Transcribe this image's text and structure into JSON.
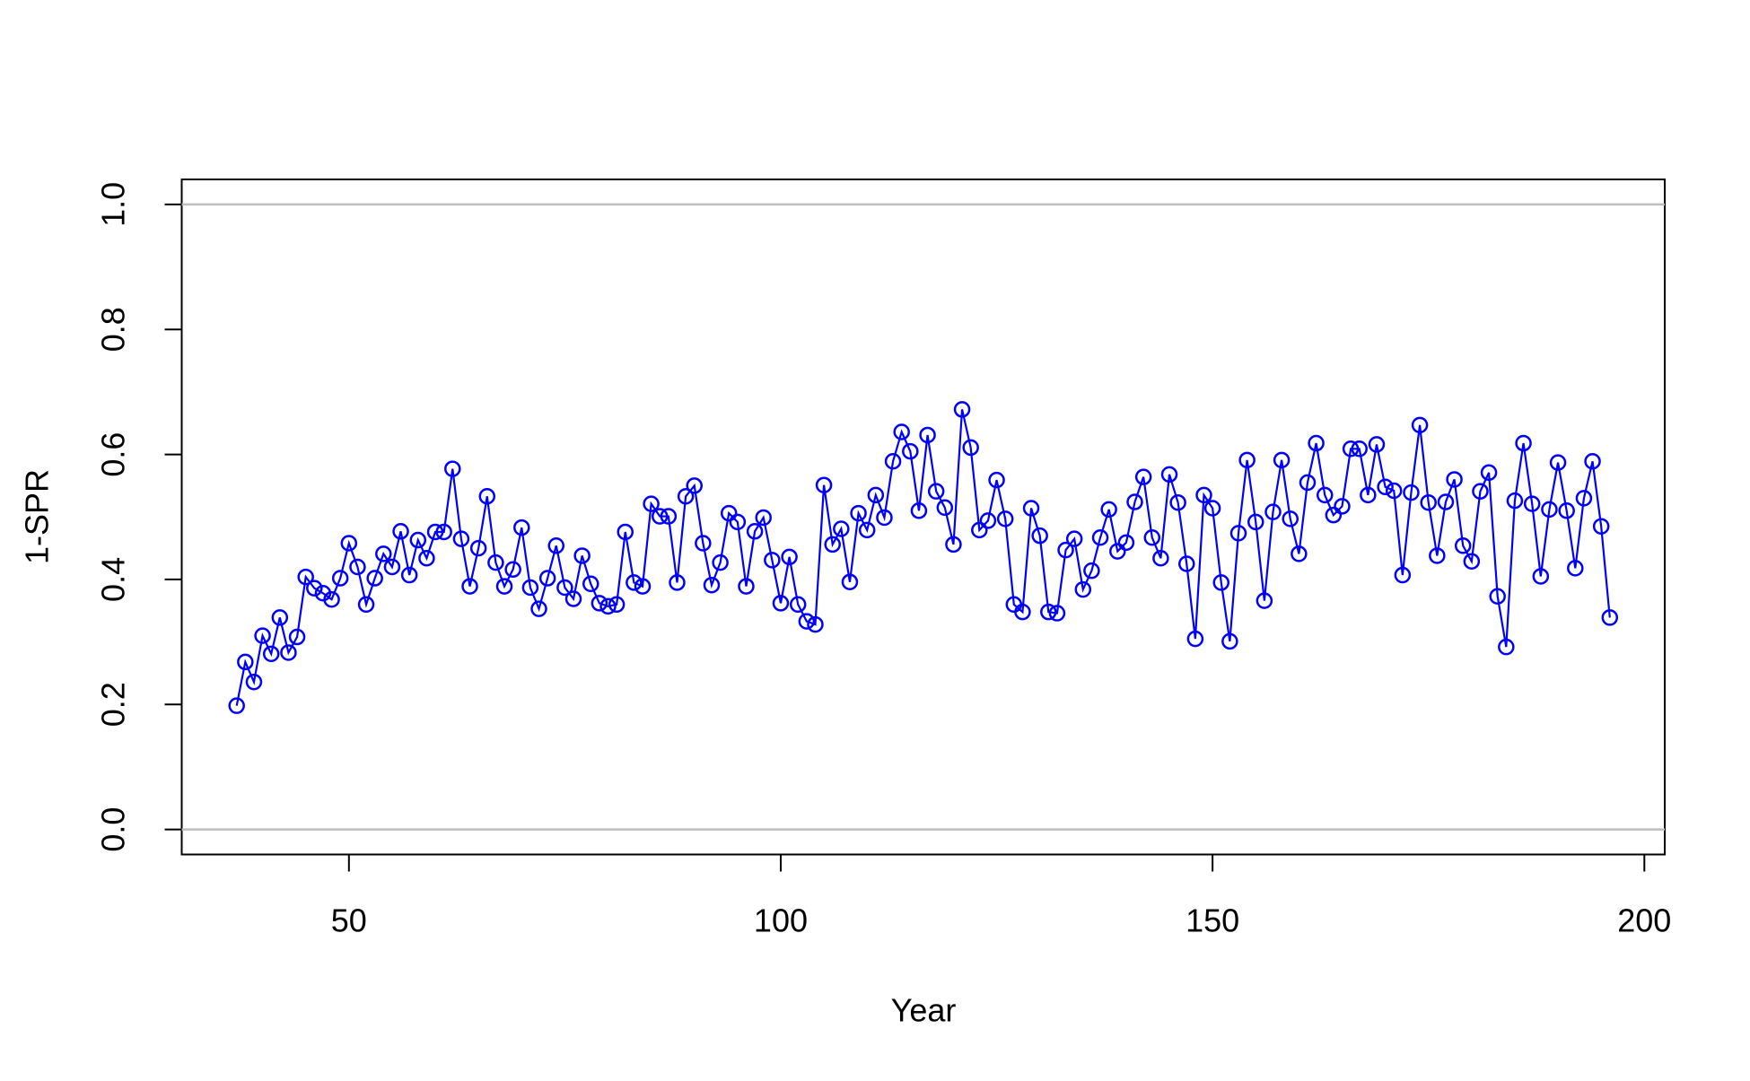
{
  "chart_data": {
    "type": "line",
    "x_label": "Year",
    "y_label": "1-SPR",
    "color": "#0000ff",
    "hline_color": "#bebebe",
    "hlines": [
      0,
      1
    ],
    "xlim": [
      30.64,
      202.36
    ],
    "ylim": [
      -0.04,
      1.04
    ],
    "xticks": [
      50,
      100,
      150,
      200
    ],
    "yticks": [
      {
        "value": 0,
        "label": "0.0"
      },
      0.2,
      0.4,
      0.6,
      0.8,
      {
        "value": 1,
        "label": "1.0"
      }
    ],
    "x": [
      37,
      38,
      39,
      40,
      41,
      42,
      43,
      44,
      45,
      46,
      47,
      48,
      49,
      50,
      51,
      52,
      53,
      54,
      55,
      56,
      57,
      58,
      59,
      60,
      61,
      62,
      63,
      64,
      65,
      66,
      67,
      68,
      69,
      70,
      71,
      72,
      73,
      74,
      75,
      76,
      77,
      78,
      79,
      80,
      81,
      82,
      83,
      84,
      85,
      86,
      87,
      88,
      89,
      90,
      91,
      92,
      93,
      94,
      95,
      96,
      97,
      98,
      99,
      100,
      101,
      102,
      103,
      104,
      105,
      106,
      107,
      108,
      109,
      110,
      111,
      112,
      113,
      114,
      115,
      116,
      117,
      118,
      119,
      120,
      121,
      122,
      123,
      124,
      125,
      126,
      127,
      128,
      129,
      130,
      131,
      132,
      133,
      134,
      135,
      136,
      137,
      138,
      139,
      140,
      141,
      142,
      143,
      144,
      145,
      146,
      147,
      148,
      149,
      150,
      151,
      152,
      153,
      154,
      155,
      156,
      157,
      158,
      159,
      160,
      161,
      162,
      163,
      164,
      165,
      166,
      167,
      168,
      169,
      170,
      171,
      172,
      173,
      174,
      175,
      176,
      177,
      178,
      179,
      180,
      181,
      182,
      183,
      184,
      185,
      186,
      187,
      188,
      189,
      190,
      191,
      192,
      193,
      194,
      195,
      196
    ],
    "values": [
      0.198,
      0.268,
      0.236,
      0.31,
      0.281,
      0.339,
      0.283,
      0.308,
      0.404,
      0.386,
      0.378,
      0.368,
      0.402,
      0.458,
      0.42,
      0.36,
      0.402,
      0.441,
      0.42,
      0.477,
      0.407,
      0.463,
      0.434,
      0.476,
      0.476,
      0.577,
      0.465,
      0.389,
      0.45,
      0.533,
      0.427,
      0.389,
      0.416,
      0.483,
      0.387,
      0.353,
      0.402,
      0.454,
      0.387,
      0.369,
      0.438,
      0.393,
      0.362,
      0.357,
      0.36,
      0.476,
      0.395,
      0.389,
      0.521,
      0.501,
      0.501,
      0.395,
      0.533,
      0.55,
      0.458,
      0.391,
      0.427,
      0.506,
      0.492,
      0.389,
      0.477,
      0.499,
      0.431,
      0.362,
      0.436,
      0.36,
      0.333,
      0.328,
      0.551,
      0.456,
      0.481,
      0.396,
      0.506,
      0.479,
      0.535,
      0.499,
      0.589,
      0.636,
      0.605,
      0.51,
      0.631,
      0.541,
      0.515,
      0.456,
      0.672,
      0.611,
      0.479,
      0.494,
      0.559,
      0.497,
      0.36,
      0.348,
      0.514,
      0.47,
      0.348,
      0.346,
      0.447,
      0.465,
      0.384,
      0.414,
      0.467,
      0.512,
      0.445,
      0.459,
      0.524,
      0.564,
      0.467,
      0.434,
      0.568,
      0.523,
      0.425,
      0.305,
      0.535,
      0.514,
      0.395,
      0.301,
      0.474,
      0.591,
      0.492,
      0.366,
      0.508,
      0.591,
      0.497,
      0.441,
      0.555,
      0.618,
      0.535,
      0.503,
      0.517,
      0.609,
      0.609,
      0.535,
      0.616,
      0.548,
      0.542,
      0.407,
      0.539,
      0.647,
      0.523,
      0.438,
      0.524,
      0.56,
      0.454,
      0.429,
      0.541,
      0.571,
      0.373,
      0.292,
      0.526,
      0.618,
      0.521,
      0.405,
      0.512,
      0.587,
      0.51,
      0.418,
      0.53,
      0.589,
      0.485,
      0.339
    ]
  }
}
